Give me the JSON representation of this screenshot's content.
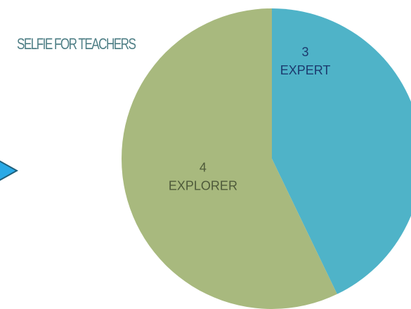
{
  "brand": {
    "text": "SELFIE FOR TEACHERS",
    "color": "#4f7f86"
  },
  "nav": {
    "arrow_color": "#29a9e6",
    "arrow_border": "#1f5f7a"
  },
  "chart_data": {
    "type": "pie",
    "title": "",
    "start_angle_deg": 0,
    "direction": "clockwise",
    "slices": [
      {
        "label": "EXPERT",
        "value": 3,
        "color": "#4fb3c8",
        "label_color": "#1c3a6e"
      },
      {
        "label": "EXPLORER",
        "value": 4,
        "color": "#a8b97e",
        "label_color": "#4e5a3a"
      }
    ],
    "legend": "none"
  }
}
